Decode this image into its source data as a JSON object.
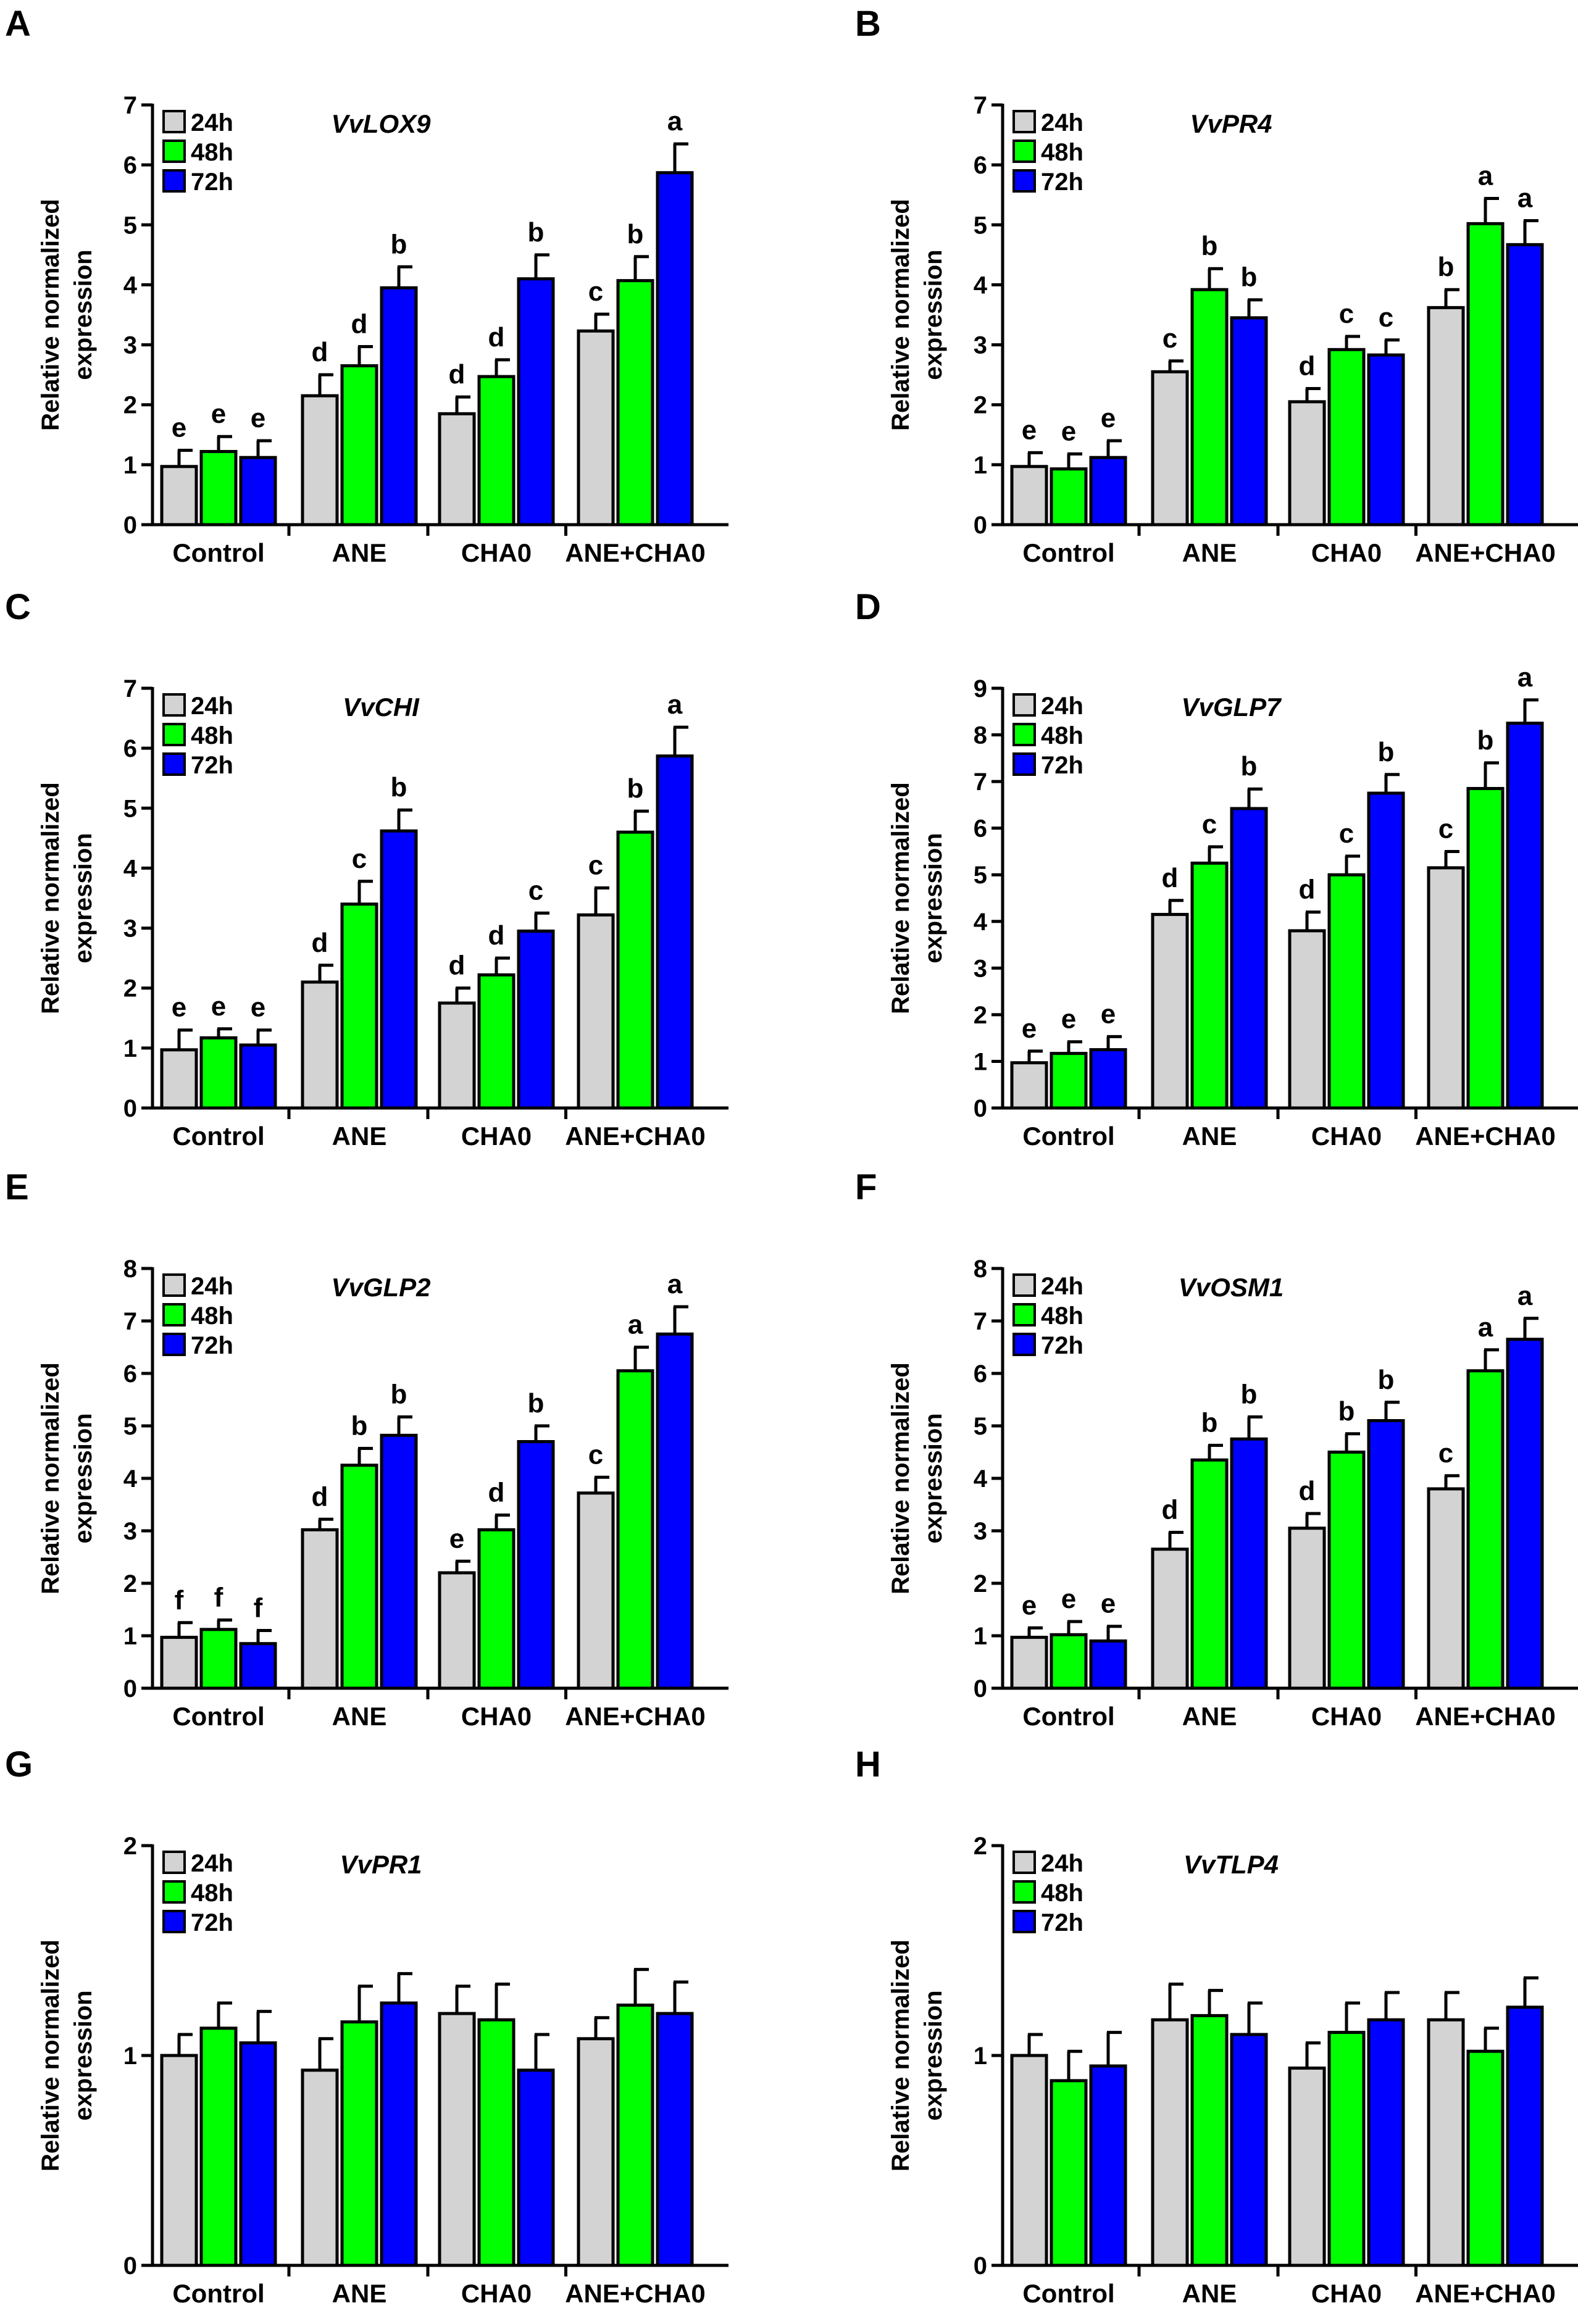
{
  "figure": {
    "shared": {
      "ylabel_line1": "Relative normalized",
      "ylabel_line2": "expression",
      "categories": [
        "Control",
        "ANE",
        "CHA0",
        "ANE+CHA0"
      ],
      "legend": [
        "24h",
        "48h",
        "72h"
      ],
      "series_colors": [
        "#d3d3d3",
        "#00ff00",
        "#0000ff"
      ]
    }
  },
  "chart_data": [
    {
      "panel": "A",
      "type": "bar",
      "title": "VvLOX9",
      "xlabel": "",
      "ylabel": "Relative normalized expression",
      "ylim": [
        0,
        7
      ],
      "yticks": [
        0,
        1,
        2,
        3,
        4,
        5,
        6,
        7
      ],
      "categories": [
        "Control",
        "ANE",
        "CHA0",
        "ANE+CHA0"
      ],
      "series": [
        {
          "name": "24h",
          "values": [
            0.97,
            2.15,
            1.85,
            3.23
          ],
          "errors": [
            0.27,
            0.35,
            0.28,
            0.28
          ],
          "letters": [
            "e",
            "d",
            "d",
            "c"
          ]
        },
        {
          "name": "48h",
          "values": [
            1.22,
            2.65,
            2.47,
            4.07
          ],
          "errors": [
            0.25,
            0.32,
            0.28,
            0.4
          ],
          "letters": [
            "e",
            "d",
            "d",
            "b"
          ]
        },
        {
          "name": "72h",
          "values": [
            1.12,
            3.95,
            4.1,
            5.87
          ],
          "errors": [
            0.28,
            0.35,
            0.4,
            0.48
          ],
          "letters": [
            "e",
            "b",
            "b",
            "a"
          ]
        }
      ]
    },
    {
      "panel": "B",
      "type": "bar",
      "title": "VvPR4",
      "xlabel": "",
      "ylabel": "Relative normalized expression",
      "ylim": [
        0,
        7
      ],
      "yticks": [
        0,
        1,
        2,
        3,
        4,
        5,
        6,
        7
      ],
      "categories": [
        "Control",
        "ANE",
        "CHA0",
        "ANE+CHA0"
      ],
      "series": [
        {
          "name": "24h",
          "values": [
            0.97,
            2.55,
            2.05,
            3.62
          ],
          "errors": [
            0.23,
            0.18,
            0.22,
            0.3
          ],
          "letters": [
            "e",
            "c",
            "d",
            "b"
          ]
        },
        {
          "name": "48h",
          "values": [
            0.93,
            3.92,
            2.92,
            5.02
          ],
          "errors": [
            0.25,
            0.35,
            0.22,
            0.42
          ],
          "letters": [
            "e",
            "b",
            "c",
            "a"
          ]
        },
        {
          "name": "72h",
          "values": [
            1.12,
            3.45,
            2.83,
            4.67
          ],
          "errors": [
            0.28,
            0.3,
            0.25,
            0.4
          ],
          "letters": [
            "e",
            "b",
            "c",
            "a"
          ]
        }
      ]
    },
    {
      "panel": "C",
      "type": "bar",
      "title": "VvCHI",
      "xlabel": "",
      "ylabel": "Relative normalized expression",
      "ylim": [
        0,
        7
      ],
      "yticks": [
        0,
        1,
        2,
        3,
        4,
        5,
        6,
        7
      ],
      "categories": [
        "Control",
        "ANE",
        "CHA0",
        "ANE+CHA0"
      ],
      "series": [
        {
          "name": "24h",
          "values": [
            0.97,
            2.1,
            1.75,
            3.22
          ],
          "errors": [
            0.33,
            0.28,
            0.25,
            0.45
          ],
          "letters": [
            "e",
            "d",
            "d",
            "c"
          ]
        },
        {
          "name": "48h",
          "values": [
            1.17,
            3.4,
            2.22,
            4.6
          ],
          "errors": [
            0.15,
            0.38,
            0.28,
            0.35
          ],
          "letters": [
            "e",
            "c",
            "d",
            "b"
          ]
        },
        {
          "name": "72h",
          "values": [
            1.05,
            4.62,
            2.95,
            5.87
          ],
          "errors": [
            0.25,
            0.35,
            0.3,
            0.48
          ],
          "letters": [
            "e",
            "b",
            "c",
            "a"
          ]
        }
      ]
    },
    {
      "panel": "D",
      "type": "bar",
      "title": "VvGLP7",
      "xlabel": "",
      "ylabel": "Relative normalized expression",
      "ylim": [
        0,
        9
      ],
      "yticks": [
        0,
        1,
        2,
        3,
        4,
        5,
        6,
        7,
        8,
        9
      ],
      "categories": [
        "Control",
        "ANE",
        "CHA0",
        "ANE+CHA0"
      ],
      "series": [
        {
          "name": "24h",
          "values": [
            0.97,
            4.15,
            3.8,
            5.15
          ],
          "errors": [
            0.25,
            0.3,
            0.4,
            0.35
          ],
          "letters": [
            "e",
            "d",
            "d",
            "c"
          ]
        },
        {
          "name": "48h",
          "values": [
            1.17,
            5.25,
            5.0,
            6.85
          ],
          "errors": [
            0.25,
            0.35,
            0.4,
            0.55
          ],
          "letters": [
            "e",
            "c",
            "c",
            "b"
          ]
        },
        {
          "name": "72h",
          "values": [
            1.25,
            6.42,
            6.75,
            8.25
          ],
          "errors": [
            0.28,
            0.42,
            0.4,
            0.5
          ],
          "letters": [
            "e",
            "b",
            "b",
            "a"
          ]
        }
      ]
    },
    {
      "panel": "E",
      "type": "bar",
      "title": "VvGLP2",
      "xlabel": "",
      "ylabel": "Relative normalized expression",
      "ylim": [
        0,
        8
      ],
      "yticks": [
        0,
        1,
        2,
        3,
        4,
        5,
        6,
        7,
        8
      ],
      "categories": [
        "Control",
        "ANE",
        "CHA0",
        "ANE+CHA0"
      ],
      "series": [
        {
          "name": "24h",
          "values": [
            0.97,
            3.02,
            2.2,
            3.72
          ],
          "errors": [
            0.28,
            0.2,
            0.22,
            0.3
          ],
          "letters": [
            "f",
            "d",
            "e",
            "c"
          ]
        },
        {
          "name": "48h",
          "values": [
            1.12,
            4.25,
            3.02,
            6.05
          ],
          "errors": [
            0.18,
            0.32,
            0.28,
            0.45
          ],
          "letters": [
            "f",
            "b",
            "d",
            "a"
          ]
        },
        {
          "name": "72h",
          "values": [
            0.85,
            4.82,
            4.7,
            6.75
          ],
          "errors": [
            0.25,
            0.35,
            0.3,
            0.52
          ],
          "letters": [
            "f",
            "b",
            "b",
            "a"
          ]
        }
      ]
    },
    {
      "panel": "F",
      "type": "bar",
      "title": "VvOSM1",
      "xlabel": "",
      "ylabel": "Relative normalized expression",
      "ylim": [
        0,
        8
      ],
      "yticks": [
        0,
        1,
        2,
        3,
        4,
        5,
        6,
        7,
        8
      ],
      "categories": [
        "Control",
        "ANE",
        "CHA0",
        "ANE+CHA0"
      ],
      "series": [
        {
          "name": "24h",
          "values": [
            0.97,
            2.65,
            3.05,
            3.8
          ],
          "errors": [
            0.18,
            0.32,
            0.28,
            0.25
          ],
          "letters": [
            "e",
            "d",
            "d",
            "c"
          ]
        },
        {
          "name": "48h",
          "values": [
            1.02,
            4.35,
            4.5,
            6.05
          ],
          "errors": [
            0.25,
            0.28,
            0.35,
            0.4
          ],
          "letters": [
            "e",
            "b",
            "b",
            "a"
          ]
        },
        {
          "name": "72h",
          "values": [
            0.9,
            4.75,
            5.1,
            6.65
          ],
          "errors": [
            0.28,
            0.42,
            0.35,
            0.4
          ],
          "letters": [
            "e",
            "b",
            "b",
            "a"
          ]
        }
      ]
    },
    {
      "panel": "G",
      "type": "bar",
      "title": "VvPR1",
      "xlabel": "",
      "ylabel": "Relative normalized expression",
      "ylim": [
        0,
        2
      ],
      "yticks": [
        0,
        1,
        2
      ],
      "categories": [
        "Control",
        "ANE",
        "CHA0",
        "ANE+CHA0"
      ],
      "series": [
        {
          "name": "24h",
          "values": [
            1.0,
            0.93,
            1.2,
            1.08
          ],
          "errors": [
            0.1,
            0.15,
            0.13,
            0.1
          ],
          "letters": [
            "",
            "",
            "",
            ""
          ]
        },
        {
          "name": "48h",
          "values": [
            1.13,
            1.16,
            1.17,
            1.24
          ],
          "errors": [
            0.12,
            0.17,
            0.17,
            0.17
          ],
          "letters": [
            "",
            "",
            "",
            ""
          ]
        },
        {
          "name": "72h",
          "values": [
            1.06,
            1.25,
            0.93,
            1.2
          ],
          "errors": [
            0.15,
            0.14,
            0.17,
            0.15
          ],
          "letters": [
            "",
            "",
            "",
            ""
          ]
        }
      ]
    },
    {
      "panel": "H",
      "type": "bar",
      "title": "VvTLP4",
      "xlabel": "",
      "ylabel": "Relative normalized expression",
      "ylim": [
        0,
        2
      ],
      "yticks": [
        0,
        1,
        2
      ],
      "categories": [
        "Control",
        "ANE",
        "CHA0",
        "ANE+CHA0"
      ],
      "series": [
        {
          "name": "24h",
          "values": [
            1.0,
            1.17,
            0.94,
            1.17
          ],
          "errors": [
            0.1,
            0.17,
            0.12,
            0.13
          ],
          "letters": [
            "",
            "",
            "",
            ""
          ]
        },
        {
          "name": "48h",
          "values": [
            0.88,
            1.19,
            1.11,
            1.02
          ],
          "errors": [
            0.14,
            0.12,
            0.14,
            0.11
          ],
          "letters": [
            "",
            "",
            "",
            ""
          ]
        },
        {
          "name": "72h",
          "values": [
            0.95,
            1.1,
            1.17,
            1.23
          ],
          "errors": [
            0.16,
            0.15,
            0.13,
            0.14
          ],
          "letters": [
            "",
            "",
            "",
            ""
          ]
        }
      ]
    }
  ]
}
